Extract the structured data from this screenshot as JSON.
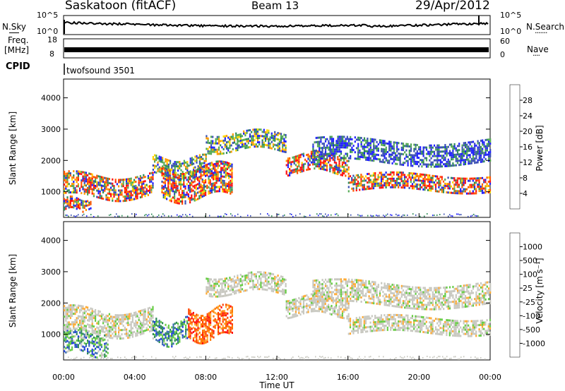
{
  "header": {
    "station": "Saskatoon (fitACF)",
    "beam": "Beam 13",
    "date": "29/Apr/2012"
  },
  "noise_panel": {
    "left_label": "N.Sky",
    "right_label": "N.Search",
    "left_ticks": [
      "10^5",
      "10^0"
    ],
    "right_ticks": [
      "10^5",
      "10^0"
    ],
    "right_dots": "·······"
  },
  "freq_panel": {
    "left_label_top": "Freq.",
    "left_label_unit": "[MHz]",
    "left_ticks": [
      "18",
      "8"
    ],
    "right_ticks": [
      "60",
      "0"
    ],
    "right_label": "Nave",
    "right_dots": "····"
  },
  "cpid": {
    "label": "CPID",
    "value": "twofsound 3501"
  },
  "colors": {
    "power": [
      "#1f1fff",
      "#3a4fb4",
      "#2e8b57",
      "#55aa55",
      "#ffd700",
      "#ff9900",
      "#ff5500",
      "#ff1010"
    ],
    "velocity": [
      "#1f3fd8",
      "#3b6fb0",
      "#2e8b57",
      "#66cc44",
      "#c8c8c0",
      "#ffaa33",
      "#ff7700",
      "#ff4400",
      "#ff1010"
    ]
  },
  "chart_data": [
    {
      "type": "heatmap",
      "name": "power",
      "ylabel": "Slant Range [km]",
      "yticks": [
        1000,
        2000,
        3000,
        4000
      ],
      "ylim": [
        180,
        4600
      ],
      "xlim": [
        0,
        24
      ],
      "colorbar": {
        "label": "Power [dB]",
        "ticks": [
          "28",
          "24",
          "20",
          "16",
          "12",
          "8",
          "4"
        ]
      },
      "bands": [
        {
          "x_start": 0.0,
          "x_end": 1.5,
          "range_center": 600,
          "range_width": 200,
          "level": "high"
        },
        {
          "x_start": 0.0,
          "x_end": 5.0,
          "range_center": 1200,
          "range_width": 350,
          "level": "high"
        },
        {
          "x_start": 5.0,
          "x_end": 8.0,
          "range_center": 1800,
          "range_width": 300,
          "level": "mid"
        },
        {
          "x_start": 5.5,
          "x_end": 9.5,
          "range_center": 1300,
          "range_width": 500,
          "level": "high"
        },
        {
          "x_start": 8.0,
          "x_end": 12.5,
          "range_center": 2600,
          "range_width": 300,
          "level": "mid"
        },
        {
          "x_start": 12.5,
          "x_end": 16.0,
          "range_center": 1900,
          "range_width": 300,
          "level": "high"
        },
        {
          "x_start": 16.0,
          "x_end": 24.0,
          "range_center": 1300,
          "range_width": 250,
          "level": "high"
        },
        {
          "x_start": 14.0,
          "x_end": 24.0,
          "range_center": 2300,
          "range_width": 350,
          "level": "low"
        }
      ]
    },
    {
      "type": "heatmap",
      "name": "velocity",
      "ylabel": "Slant Range [km]",
      "xlabel": "Time UT",
      "xticks": [
        "00:00",
        "04:00",
        "08:00",
        "12:00",
        "16:00",
        "20:00",
        "00:00"
      ],
      "yticks": [
        1000,
        2000,
        3000,
        4000
      ],
      "ylim": [
        180,
        4600
      ],
      "xlim": [
        0,
        24
      ],
      "colorbar": {
        "label": "Velocity [m s⁻¹]",
        "ticks": [
          "1000",
          "500",
          "100",
          "25",
          "-25",
          "-100",
          "-500",
          "-1000"
        ]
      },
      "bands": [
        {
          "x_start": 0.0,
          "x_end": 2.5,
          "range_center": 750,
          "range_width": 350,
          "level": "positive"
        },
        {
          "x_start": 0.0,
          "x_end": 5.0,
          "range_center": 1400,
          "range_width": 400,
          "level": "neutral"
        },
        {
          "x_start": 5.0,
          "x_end": 7.0,
          "range_center": 1100,
          "range_width": 350,
          "level": "positive"
        },
        {
          "x_start": 7.0,
          "x_end": 9.5,
          "range_center": 1350,
          "range_width": 450,
          "level": "negative"
        },
        {
          "x_start": 8.0,
          "x_end": 12.5,
          "range_center": 2600,
          "range_width": 300,
          "level": "neutral"
        },
        {
          "x_start": 12.5,
          "x_end": 16.0,
          "range_center": 1900,
          "range_width": 300,
          "level": "neutral"
        },
        {
          "x_start": 16.0,
          "x_end": 24.0,
          "range_center": 1300,
          "range_width": 250,
          "level": "neutral"
        },
        {
          "x_start": 14.0,
          "x_end": 24.0,
          "range_center": 2300,
          "range_width": 350,
          "level": "neutral"
        }
      ]
    }
  ]
}
